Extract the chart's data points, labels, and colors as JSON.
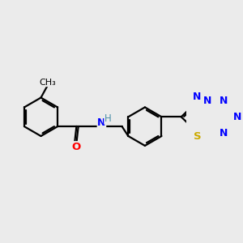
{
  "background_color": "#ebebeb",
  "bond_color": "#000000",
  "bond_width": 1.6,
  "atom_colors": {
    "N": "#0000ff",
    "O": "#ff0000",
    "S": "#ccaa00",
    "H": "#4a8fa8",
    "C": "#000000"
  },
  "font_size": 8.5,
  "figsize": [
    3.0,
    3.0
  ],
  "dpi": 100
}
